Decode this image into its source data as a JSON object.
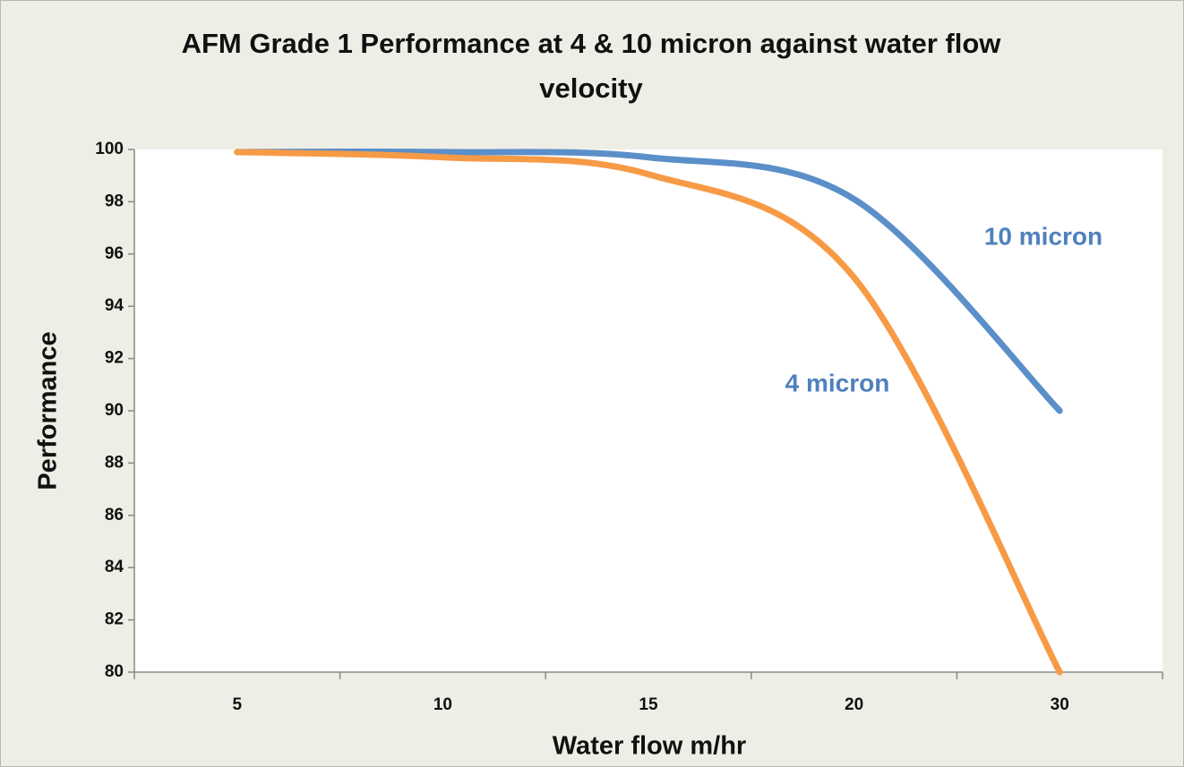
{
  "chart_data": {
    "type": "line",
    "title": "AFM Grade 1 Performance at 4 & 10 micron against water flow velocity",
    "x_label": "Water flow m/hr",
    "y_label": "Performance",
    "categories": [
      "5",
      "10",
      "15",
      "20",
      "30"
    ],
    "series": [
      {
        "name": "10 micron",
        "color": "#5b8fc9",
        "values": [
          99.9,
          99.9,
          99.7,
          98.1,
          90
        ]
      },
      {
        "name": "4 micron",
        "color": "#f79a46",
        "values": [
          99.9,
          99.7,
          99.05,
          95.1,
          80
        ]
      }
    ],
    "ylim": [
      80,
      100
    ],
    "yticks": [
      80,
      82,
      84,
      86,
      88,
      90,
      92,
      94,
      96,
      98,
      100
    ],
    "grid": false,
    "smooth": true
  }
}
